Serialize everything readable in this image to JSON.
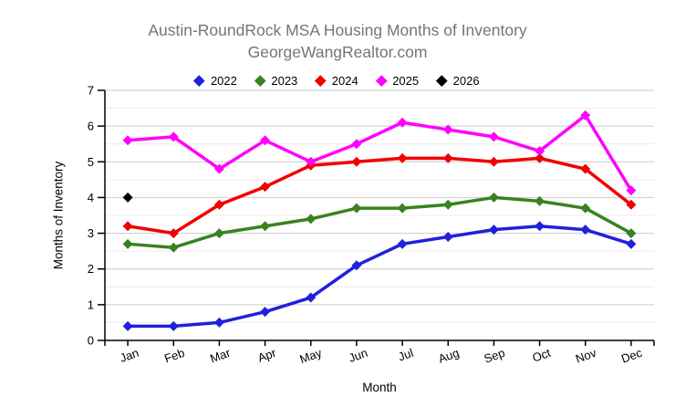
{
  "title": "Austin-RoundRock MSA Housing Months of Inventory",
  "subtitle": "GeorgeWangRealtor.com",
  "colors": {
    "title_text": "#757575",
    "axis": "#000000",
    "grid_major": "#cccccc",
    "grid_minor": "#ececec",
    "tick_text": "#000000",
    "background": "#ffffff"
  },
  "chart_data": {
    "type": "line",
    "title": "Austin-RoundRock MSA Housing Months of Inventory",
    "subtitle": "GeorgeWangRealtor.com",
    "xlabel": "Month",
    "ylabel": "Months of Inventory",
    "categories": [
      "Jan",
      "Feb",
      "Mar",
      "Apr",
      "May",
      "Jun",
      "Jul",
      "Aug",
      "Sep",
      "Oct",
      "Nov",
      "Dec"
    ],
    "series": [
      {
        "name": "2022",
        "color": "#2020dd",
        "values": [
          0.4,
          0.4,
          0.5,
          0.8,
          1.2,
          2.1,
          2.7,
          2.9,
          3.1,
          3.2,
          3.1,
          2.7
        ]
      },
      {
        "name": "2023",
        "color": "#38831f",
        "values": [
          2.7,
          2.6,
          3.0,
          3.2,
          3.4,
          3.7,
          3.7,
          3.8,
          4.0,
          3.9,
          3.7,
          3.0
        ]
      },
      {
        "name": "2024",
        "color": "#f00000",
        "values": [
          3.2,
          3.0,
          3.8,
          4.3,
          4.9,
          5.0,
          5.1,
          5.1,
          5.0,
          5.1,
          4.8,
          3.8
        ]
      },
      {
        "name": "2025",
        "color": "#ff00ff",
        "values": [
          5.6,
          5.7,
          4.8,
          5.6,
          5.0,
          5.5,
          6.1,
          5.9,
          5.7,
          5.3,
          6.3,
          4.2
        ]
      },
      {
        "name": "2026",
        "color": "#000000",
        "values": [
          4.0,
          null,
          null,
          null,
          null,
          null,
          null,
          null,
          null,
          null,
          null,
          null
        ]
      }
    ],
    "ylim": [
      0,
      7
    ],
    "y_major_step": 1,
    "y_minor_step": 0.5,
    "grid": true,
    "marker": "diamond",
    "legend_position": "top"
  }
}
